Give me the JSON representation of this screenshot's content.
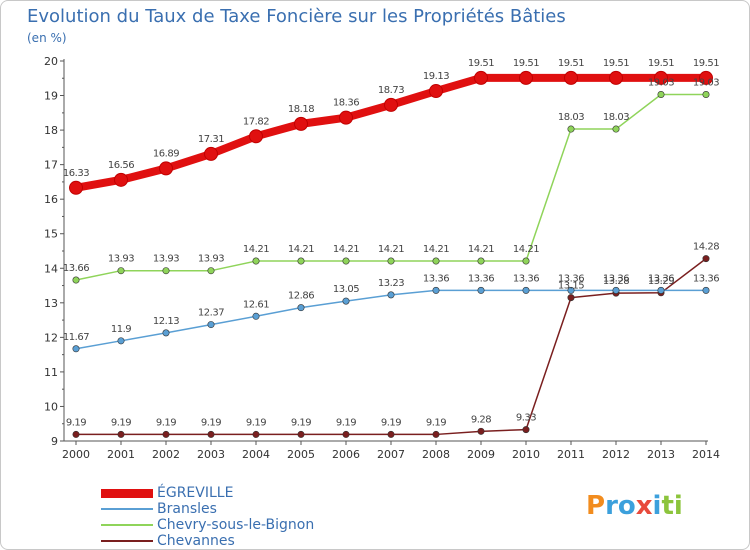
{
  "title": "Evolution du Taux de Taxe Foncière sur les Propriétés Bâties",
  "unit_label": "(en %)",
  "logo": {
    "text": "Proxiti",
    "letters": [
      "P",
      "r",
      "o",
      "x",
      "i",
      "t",
      "i"
    ],
    "colors": [
      "#f28c1e",
      "#3ca0dc",
      "#3ca0dc",
      "#e84a3c",
      "#3ca0dc",
      "#8cc43c",
      "#8cc43c"
    ]
  },
  "chart_data": {
    "type": "line",
    "title": "Evolution du Taux de Taxe Foncière sur les Propriétés Bâties",
    "ylabel": "(en %)",
    "xlabel": "",
    "x": [
      2000,
      2001,
      2002,
      2003,
      2004,
      2005,
      2006,
      2007,
      2008,
      2009,
      2010,
      2011,
      2012,
      2013,
      2014
    ],
    "yticks": [
      9,
      10,
      11,
      12,
      13,
      14,
      15,
      16,
      17,
      18,
      19,
      20
    ],
    "ylim": [
      9,
      20
    ],
    "grid": false,
    "legend_position": "bottom-left",
    "series": [
      {
        "name": "ÉGREVILLE",
        "color": "#e01010",
        "values": [
          16.33,
          16.56,
          16.89,
          17.31,
          17.82,
          18.18,
          18.36,
          18.73,
          19.13,
          19.51,
          19.51,
          19.51,
          19.51,
          19.51,
          19.51
        ],
        "labels": [
          "16.33",
          "16.56",
          "16.89",
          "17.31",
          "17.82",
          "18.18",
          "18.36",
          "18.73",
          "19.13",
          "19.51",
          "19.51",
          "19.51",
          "19.51",
          "19.51",
          "19.51"
        ]
      },
      {
        "name": "Bransles",
        "color": "#5a9fd4",
        "values": [
          11.67,
          11.9,
          12.13,
          12.37,
          12.61,
          12.86,
          13.05,
          13.23,
          13.36,
          13.36,
          13.36,
          13.36,
          13.36,
          13.36,
          13.36
        ],
        "labels": [
          "11.67",
          "11.9",
          "12.13",
          "12.37",
          "12.61",
          "12.86",
          "13.05",
          "13.23",
          "13.36",
          "13.36",
          "13.36",
          "13.36",
          "13.36",
          "13.36",
          "13.36"
        ]
      },
      {
        "name": "Chevry-sous-le-Bignon",
        "color": "#8fd45a",
        "values": [
          13.66,
          13.93,
          13.93,
          13.93,
          14.21,
          14.21,
          14.21,
          14.21,
          14.21,
          14.21,
          14.21,
          18.03,
          18.03,
          19.03,
          19.03
        ],
        "labels": [
          "13.66",
          "13.93",
          "13.93",
          "13.93",
          "14.21",
          "14.21",
          "14.21",
          "14.21",
          "14.21",
          "14.21",
          "14.21",
          "18.03",
          "18.03",
          "19.03",
          "19.03"
        ]
      },
      {
        "name": "Chevannes",
        "color": "#7a1f1f",
        "values": [
          9.19,
          9.19,
          9.19,
          9.19,
          9.19,
          9.19,
          9.19,
          9.19,
          9.19,
          9.28,
          9.33,
          13.15,
          13.28,
          13.29,
          14.28
        ],
        "labels": [
          "9.19",
          "9.19",
          "9.19",
          "9.19",
          "9.19",
          "9.19",
          "9.19",
          "9.19",
          "9.19",
          "9.28",
          "9.33",
          "13.15",
          "13.28",
          "13.29",
          "14.28"
        ]
      }
    ]
  }
}
